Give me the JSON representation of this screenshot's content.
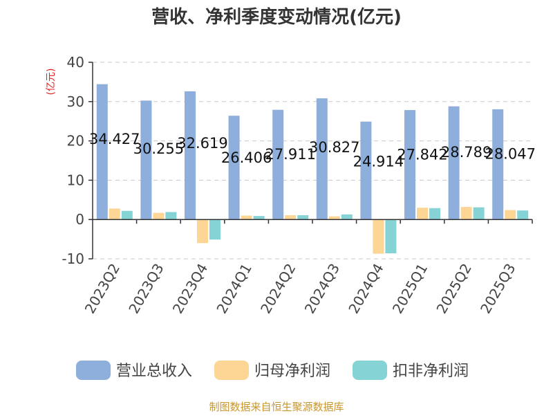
{
  "chart_data": {
    "type": "bar",
    "title": "营收、净利季度变动情况(亿元)",
    "ylabel": "(亿元)",
    "xlabel": "",
    "ylim": [
      -10,
      40
    ],
    "yticks": [
      40,
      30,
      20,
      10,
      0,
      -10
    ],
    "grid": true,
    "legend_position": "bottom",
    "categories": [
      "2023Q2",
      "2023Q3",
      "2023Q4",
      "2024Q1",
      "2024Q2",
      "2024Q3",
      "2024Q4",
      "2025Q1",
      "2025Q2",
      "2025Q3"
    ],
    "series": [
      {
        "name": "营业总收入",
        "color": "#8eaedb",
        "values": [
          34.427,
          30.255,
          32.619,
          26.406,
          27.911,
          30.827,
          24.914,
          27.842,
          28.789,
          28.047
        ]
      },
      {
        "name": "归母净利润",
        "color": "#fdd696",
        "values": [
          2.8,
          1.7,
          -6.0,
          1.0,
          1.1,
          0.8,
          -8.7,
          3.0,
          3.2,
          2.4
        ]
      },
      {
        "name": "扣非净利润",
        "color": "#86d3d6",
        "values": [
          2.2,
          1.9,
          -5.1,
          0.9,
          1.1,
          1.3,
          -8.6,
          2.9,
          3.1,
          2.3
        ]
      }
    ],
    "data_labels": [
      "34.427",
      "30.255",
      "32.619",
      "26.406",
      "27.911",
      "30.827",
      "24.914",
      "27.842",
      "28.789",
      "28.047"
    ]
  },
  "footer": {
    "source": "制图数据来自恒生聚源数据库"
  }
}
